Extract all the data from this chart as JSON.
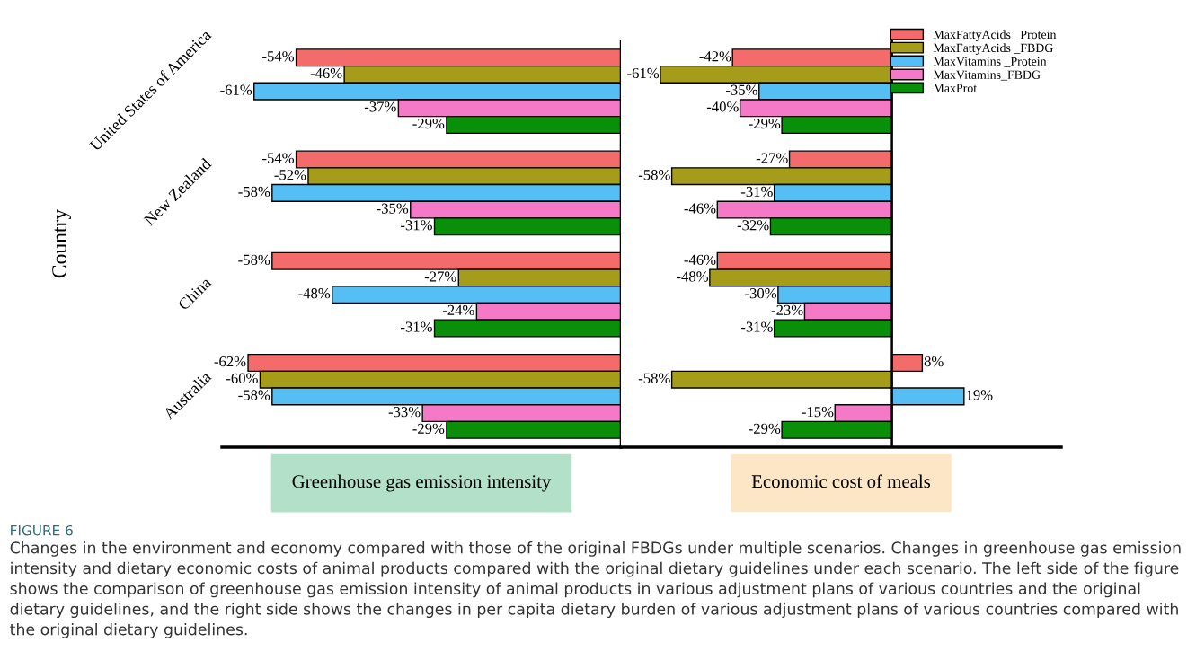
{
  "chart_data": [
    {
      "type": "bar",
      "orientation": "horizontal",
      "xlabel": "Greenhouse gas emission intensity",
      "ylabel": "Country",
      "tick_labels": "y",
      "legend": false,
      "categories": [
        "United States of America",
        "New Zealand",
        "China",
        "Australia"
      ],
      "series": [
        {
          "color": "#f46b6b",
          "values": [
            -54,
            -54,
            -58,
            -62
          ],
          "value_labels": [
            "-54%",
            "-54%",
            "-58%",
            "-62%"
          ]
        },
        {
          "color": "#a59c1a",
          "values": [
            -46,
            -52,
            -27,
            -60
          ],
          "value_labels": [
            "-46%",
            "-52%",
            "-27%",
            "-60%"
          ]
        },
        {
          "color": "#55bef5",
          "values": [
            -61,
            -58,
            -48,
            -58
          ],
          "value_labels": [
            "-61%",
            "-58%",
            "-48%",
            "-58%"
          ]
        },
        {
          "color": "#f47ac8",
          "values": [
            -37,
            -35,
            -24,
            -33
          ],
          "value_labels": [
            "-37%",
            "-35%",
            "-24%",
            "-33%"
          ]
        },
        {
          "color": "#0a8f0a",
          "values": [
            -29,
            -31,
            -31,
            -29
          ],
          "value_labels": [
            "-29%",
            "-31%",
            "-31%",
            "-29%"
          ]
        }
      ],
      "annotations": [
        "FIGURE 6",
        "Changes in the environment and economy compared with those of the original FBDGs under multiple scenarios. Changes in greenhouse gas emission intensity and dietary economic costs of animal products compared with the original dietary guidelines under each scenario. The left side of the figure shows the comparison of greenhouse gas emission intensity of animal products in various adjustment plans of various countries and the original dietary guidelines, and the right side shows the changes in per capita dietary burden of various adjustment plans of various countries compared with the original dietary guidelines."
      ]
    },
    {
      "type": "bar",
      "orientation": "horizontal",
      "xlabel": "Economic cost of meals",
      "tick_labels": false,
      "legend": "top right",
      "categories": [
        null,
        null,
        null,
        null
      ],
      "series": [
        {
          "name": "MaxFattyAcids _Protein",
          "color": "#f46b6b",
          "values": [
            -42,
            -27,
            -46,
            8
          ],
          "value_labels": [
            "-42%",
            "-27%",
            "-46%",
            "8%"
          ]
        },
        {
          "name": "MaxFattyAcids _FBDG",
          "color": "#a59c1a",
          "values": [
            -61,
            -58,
            -48,
            -58
          ],
          "value_labels": [
            "-61%",
            "-58%",
            "-48%",
            "-58%"
          ]
        },
        {
          "name": "MaxVitamins _Protein",
          "color": "#55bef5",
          "values": [
            -35,
            -31,
            -30,
            19
          ],
          "value_labels": [
            "-35%",
            "-31%",
            "-30%",
            "19%"
          ]
        },
        {
          "name": "MaxVitamins_FBDG",
          "color": "#f47ac8",
          "values": [
            -40,
            -46,
            -23,
            -15
          ],
          "value_labels": [
            "-40%",
            "-46%",
            "-23%",
            "-15%"
          ]
        },
        {
          "name": "MaxProt",
          "color": "#0a8f0a",
          "values": [
            -29,
            -32,
            -31,
            -29
          ],
          "value_labels": [
            "-29%",
            "-32%",
            "-31%",
            "-29%"
          ]
        }
      ]
    }
  ]
}
